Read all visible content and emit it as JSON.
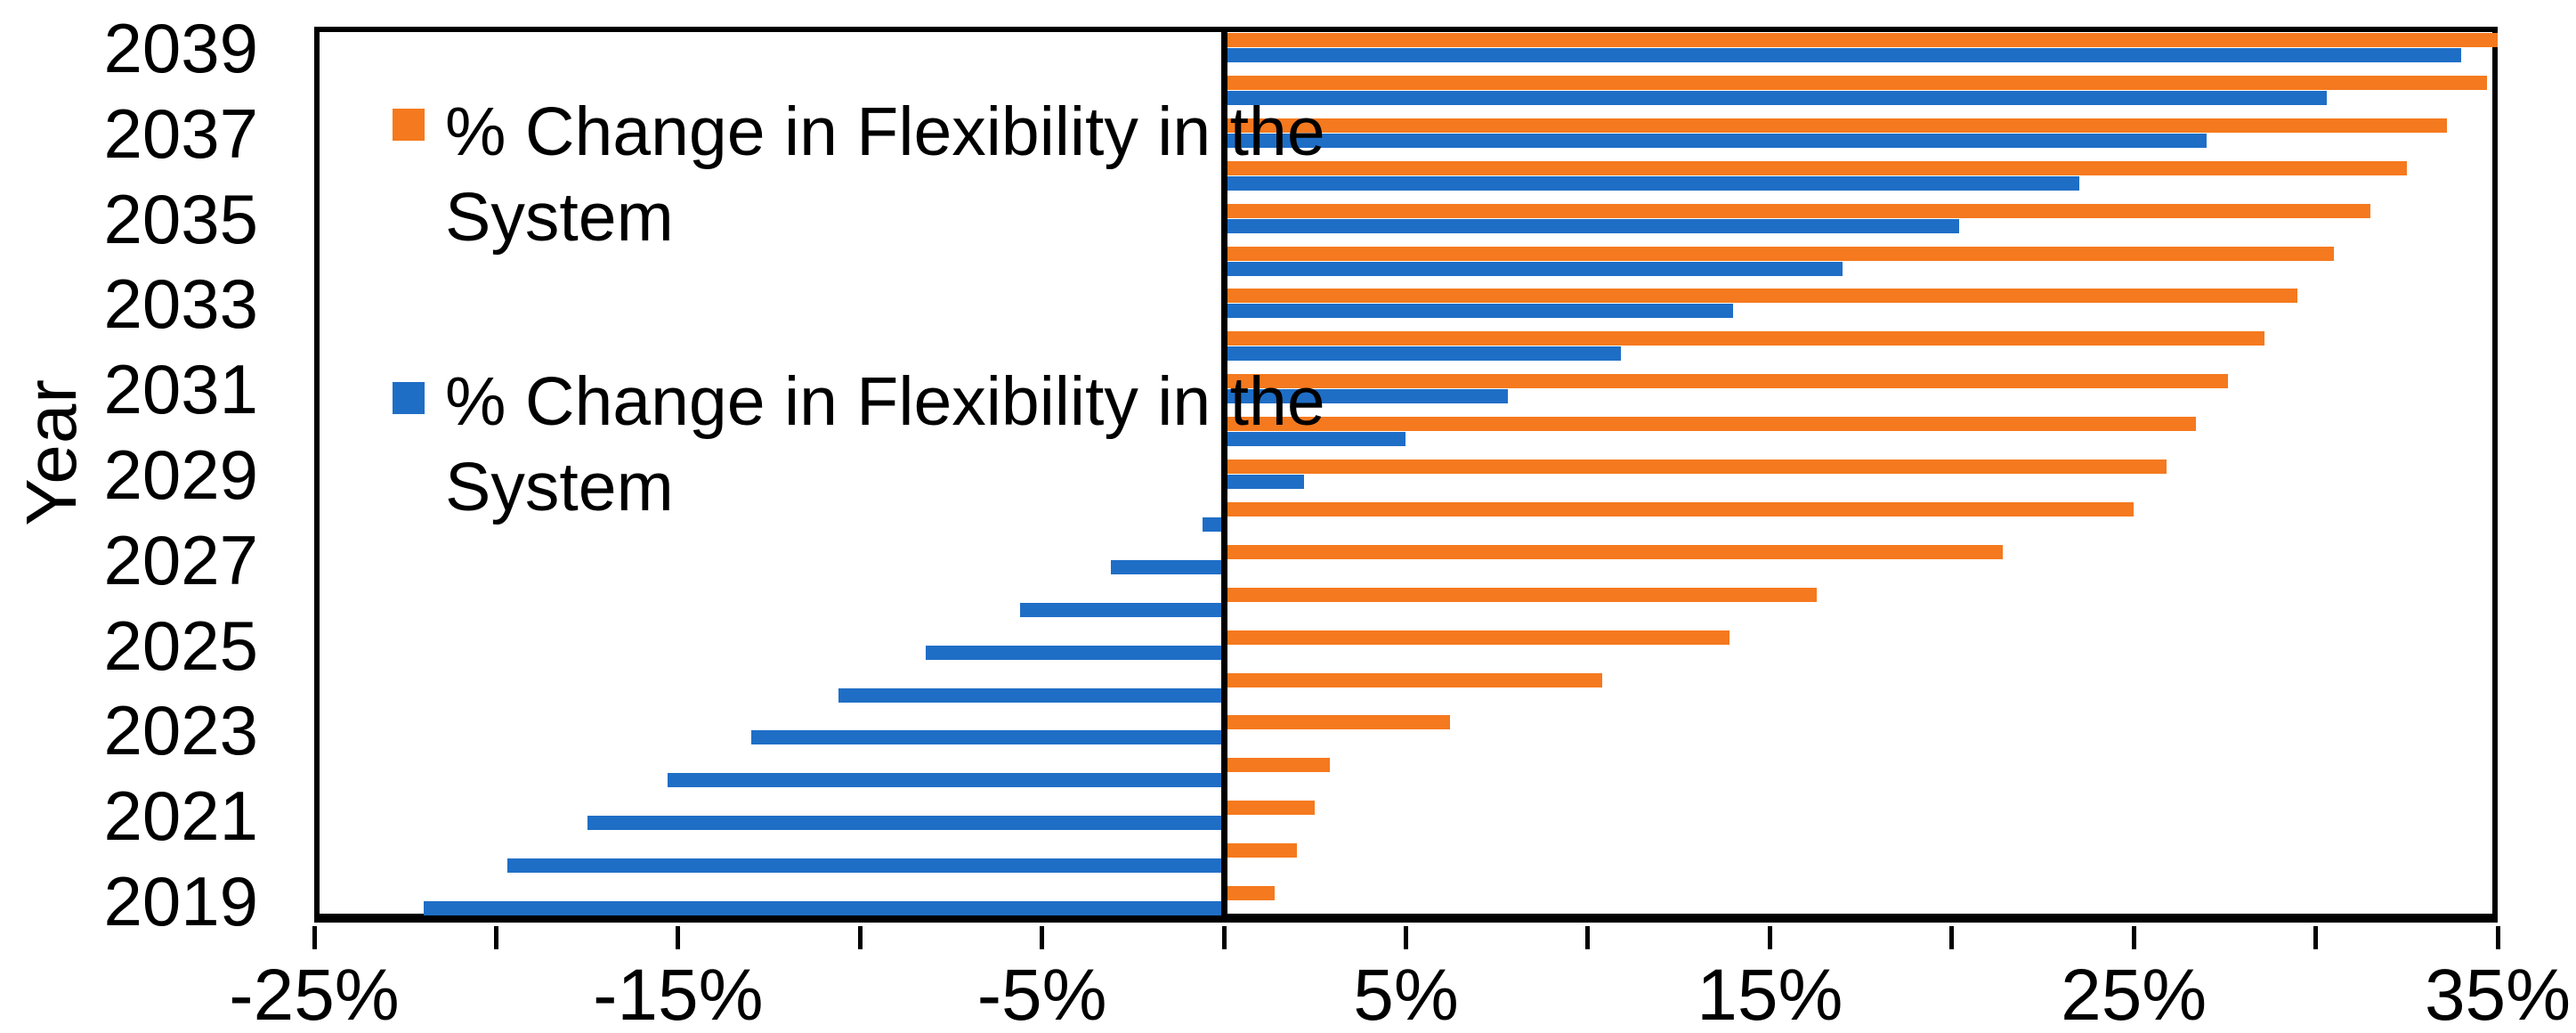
{
  "chart_data": {
    "type": "bar",
    "orientation": "horizontal",
    "title": "",
    "ylabel": "Year",
    "xlabel": "",
    "grid": false,
    "legend_position": "inside-upper-left",
    "xlim": [
      -25,
      35
    ],
    "xtick_minor_step": 5,
    "xticks": [
      {
        "value": -25,
        "label": "-25%"
      },
      {
        "value": -15,
        "label": "-15%"
      },
      {
        "value": -5,
        "label": "-5%"
      },
      {
        "value": 5,
        "label": "5%"
      },
      {
        "value": 15,
        "label": "15%"
      },
      {
        "value": 25,
        "label": "25%"
      },
      {
        "value": 35,
        "label": "35%"
      }
    ],
    "ytick_labels": [
      "2039",
      "2037",
      "2035",
      "2033",
      "2031",
      "2029",
      "2027",
      "2025",
      "2023",
      "2021",
      "2019"
    ],
    "categories": [
      2019,
      2020,
      2021,
      2022,
      2023,
      2024,
      2025,
      2026,
      2027,
      2028,
      2029,
      2030,
      2031,
      2032,
      2033,
      2034,
      2035,
      2036,
      2037,
      2038,
      2039
    ],
    "series": [
      {
        "name": "% Change in Flexibility in the System",
        "color": "#f5791e",
        "values": [
          1.4,
          2.0,
          2.5,
          2.9,
          6.2,
          10.4,
          13.9,
          16.3,
          21.4,
          25.0,
          25.9,
          26.7,
          27.6,
          28.6,
          29.5,
          30.5,
          31.5,
          32.5,
          33.6,
          34.7,
          35.0
        ]
      },
      {
        "name": "% Change in Flexibility in the System",
        "color": "#1f6ec6",
        "values": [
          -22.0,
          -19.7,
          -17.5,
          -15.3,
          -13.0,
          -10.6,
          -8.2,
          -5.6,
          -3.1,
          -0.6,
          2.2,
          5.0,
          7.8,
          10.9,
          14.0,
          17.0,
          20.2,
          23.5,
          27.0,
          30.3,
          34.0
        ]
      }
    ]
  }
}
